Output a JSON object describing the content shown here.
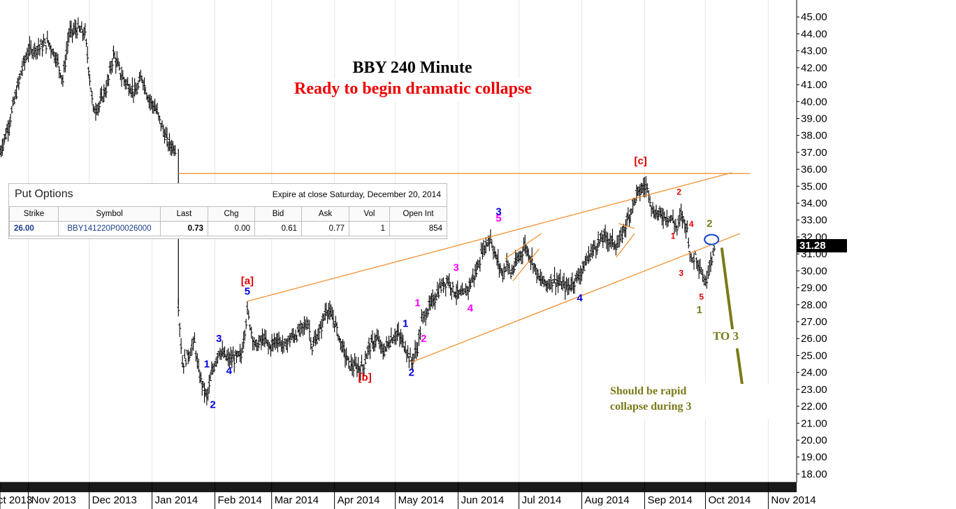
{
  "title": "BBY 240 Minute",
  "subtitle": "Ready to begin dramatic collapse",
  "note": [
    "Should be rapid",
    "collapse during 3"
  ],
  "target_label": "TO 3",
  "last_price_tag": "31.28",
  "options": {
    "panel_title": "Put Options",
    "expire_text": "Expire at close Saturday, December 20, 2014",
    "columns": [
      "Strike",
      "Symbol",
      "Last",
      "Chg",
      "Bid",
      "Ask",
      "Vol",
      "Open Int"
    ],
    "row": [
      "26.00",
      "BBY141220P00026000",
      "0.73",
      "0.00",
      "0.61",
      "0.77",
      "1",
      "854"
    ]
  },
  "colors": {
    "bars": "#000000",
    "channel": "#f08a24",
    "red": "#e00000",
    "blue": "#0000e0",
    "magenta": "#ff00ff",
    "olive": "#7a7a18",
    "circle": "#1144cc"
  },
  "chart_data": {
    "type": "ohlc",
    "title": "BBY 240 Minute",
    "y_axis": {
      "side": "right",
      "ylim": [
        17.5,
        46.0
      ],
      "ticks": [
        "18.00",
        "19.00",
        "20.00",
        "21.00",
        "22.00",
        "23.00",
        "24.00",
        "25.00",
        "26.00",
        "27.00",
        "28.00",
        "29.00",
        "30.00",
        "31.00",
        "32.00",
        "33.00",
        "34.00",
        "35.00",
        "36.00",
        "37.00",
        "38.00",
        "39.00",
        "40.00",
        "41.00",
        "42.00",
        "43.00",
        "44.00",
        "45.00"
      ]
    },
    "x_axis": {
      "ticks": [
        "ct 2013",
        "Nov 2013",
        "Dec 2013",
        "Jan 2014",
        "Feb 2014",
        "Mar 2014",
        "Apr 2014",
        "May 2014",
        "Jun 2014",
        "Jul 2014",
        "Aug 2014",
        "Sep 2014",
        "Oct 2014",
        "Nov 2014"
      ],
      "range": [
        "2013-10-18",
        "2014-11-15"
      ]
    },
    "price_path": [
      [
        "2013-10-18",
        37.0
      ],
      [
        "2013-10-22",
        38.5
      ],
      [
        "2013-10-25",
        40.0
      ],
      [
        "2013-10-29",
        42.0
      ],
      [
        "2013-11-01",
        43.0
      ],
      [
        "2013-11-06",
        43.2
      ],
      [
        "2013-11-11",
        43.5
      ],
      [
        "2013-11-15",
        42.5
      ],
      [
        "2013-11-18",
        41.3
      ],
      [
        "2013-11-21",
        44.0
      ],
      [
        "2013-11-25",
        44.3
      ],
      [
        "2013-11-29",
        44.0
      ],
      [
        "2013-12-03",
        39.5
      ],
      [
        "2013-12-06",
        39.8
      ],
      [
        "2013-12-10",
        41.0
      ],
      [
        "2013-12-13",
        42.8
      ],
      [
        "2013-12-17",
        41.5
      ],
      [
        "2013-12-20",
        41.0
      ],
      [
        "2013-12-24",
        40.5
      ],
      [
        "2013-12-27",
        41.5
      ],
      [
        "2013-12-30",
        40.3
      ],
      [
        "2014-01-03",
        39.5
      ],
      [
        "2014-01-06",
        38.5
      ],
      [
        "2014-01-09",
        37.5
      ],
      [
        "2014-01-13",
        37.2
      ],
      [
        "2014-01-14",
        28.0
      ],
      [
        "2014-01-16",
        24.5
      ],
      [
        "2014-01-20",
        25.3
      ],
      [
        "2014-01-22",
        25.8
      ],
      [
        "2014-01-24",
        24.0
      ],
      [
        "2014-01-28",
        22.5
      ],
      [
        "2014-01-31",
        24.2
      ],
      [
        "2014-02-03",
        25.3
      ],
      [
        "2014-02-07",
        24.8
      ],
      [
        "2014-02-10",
        24.8
      ],
      [
        "2014-02-14",
        25.0
      ],
      [
        "2014-02-17",
        27.6
      ],
      [
        "2014-02-19",
        26.5
      ],
      [
        "2014-02-21",
        25.5
      ],
      [
        "2014-02-25",
        26.0
      ],
      [
        "2014-02-28",
        25.5
      ],
      [
        "2014-03-04",
        26.0
      ],
      [
        "2014-03-07",
        25.5
      ],
      [
        "2014-03-10",
        26.0
      ],
      [
        "2014-03-14",
        26.3
      ],
      [
        "2014-03-19",
        27.0
      ],
      [
        "2014-03-21",
        25.5
      ],
      [
        "2014-03-25",
        26.5
      ],
      [
        "2014-03-28",
        27.8
      ],
      [
        "2014-04-01",
        27.0
      ],
      [
        "2014-04-04",
        25.8
      ],
      [
        "2014-04-08",
        24.5
      ],
      [
        "2014-04-11",
        24.3
      ],
      [
        "2014-04-15",
        24.3
      ],
      [
        "2014-04-18",
        25.5
      ],
      [
        "2014-04-22",
        26.0
      ],
      [
        "2014-04-25",
        25.2
      ],
      [
        "2014-04-29",
        26.0
      ],
      [
        "2014-05-02",
        26.3
      ],
      [
        "2014-05-06",
        25.5
      ],
      [
        "2014-05-09",
        24.6
      ],
      [
        "2014-05-12",
        25.5
      ],
      [
        "2014-05-14",
        27.0
      ],
      [
        "2014-05-16",
        27.5
      ],
      [
        "2014-05-20",
        28.3
      ],
      [
        "2014-05-23",
        29.0
      ],
      [
        "2014-05-27",
        29.5
      ],
      [
        "2014-05-30",
        28.8
      ],
      [
        "2014-06-03",
        28.5
      ],
      [
        "2014-06-06",
        29.0
      ],
      [
        "2014-06-10",
        30.0
      ],
      [
        "2014-06-13",
        31.2
      ],
      [
        "2014-06-17",
        32.0
      ],
      [
        "2014-06-19",
        31.0
      ],
      [
        "2014-06-23",
        29.8
      ],
      [
        "2014-06-25",
        30.5
      ],
      [
        "2014-06-27",
        29.8
      ],
      [
        "2014-07-01",
        30.8
      ],
      [
        "2014-07-04",
        31.5
      ],
      [
        "2014-07-08",
        30.5
      ],
      [
        "2014-07-11",
        29.5
      ],
      [
        "2014-07-15",
        29.2
      ],
      [
        "2014-07-18",
        29.5
      ],
      [
        "2014-07-22",
        29.2
      ],
      [
        "2014-07-25",
        29.0
      ],
      [
        "2014-07-29",
        29.5
      ],
      [
        "2014-08-01",
        30.0
      ],
      [
        "2014-08-05",
        31.0
      ],
      [
        "2014-08-08",
        31.5
      ],
      [
        "2014-08-12",
        32.0
      ],
      [
        "2014-08-15",
        31.8
      ],
      [
        "2014-08-19",
        31.5
      ],
      [
        "2014-08-21",
        32.2
      ],
      [
        "2014-08-25",
        33.5
      ],
      [
        "2014-08-28",
        34.5
      ],
      [
        "2014-09-01",
        35.0
      ],
      [
        "2014-09-03",
        34.8
      ],
      [
        "2014-09-05",
        33.5
      ],
      [
        "2014-09-09",
        33.3
      ],
      [
        "2014-09-12",
        33.2
      ],
      [
        "2014-09-15",
        33.0
      ],
      [
        "2014-09-17",
        32.5
      ],
      [
        "2014-09-19",
        33.3
      ],
      [
        "2014-09-22",
        32.5
      ],
      [
        "2014-09-24",
        30.5
      ],
      [
        "2014-09-26",
        31.0
      ],
      [
        "2014-09-29",
        30.0
      ],
      [
        "2014-10-01",
        29.2
      ],
      [
        "2014-10-03",
        30.5
      ],
      [
        "2014-10-06",
        31.3
      ]
    ],
    "annotations": [
      {
        "text": "[a]",
        "color": "red",
        "date": "2014-02-17",
        "price": 29.2
      },
      {
        "text": "[b]",
        "color": "red",
        "date": "2014-04-16",
        "price": 23.5
      },
      {
        "text": "[c]",
        "color": "red",
        "date": "2014-08-30",
        "price": 36.3
      },
      {
        "text": "5",
        "color": "blue",
        "date": "2014-02-17",
        "price": 28.6
      },
      {
        "text": "1",
        "color": "blue",
        "date": "2014-01-28",
        "price": 24.3
      },
      {
        "text": "2",
        "color": "blue",
        "date": "2014-01-31",
        "price": 21.9
      },
      {
        "text": "3",
        "color": "blue",
        "date": "2014-02-03",
        "price": 25.8
      },
      {
        "text": "4",
        "color": "blue",
        "date": "2014-02-08",
        "price": 23.9
      },
      {
        "text": "1",
        "color": "blue",
        "date": "2014-05-06",
        "price": 26.7
      },
      {
        "text": "2",
        "color": "blue",
        "date": "2014-05-09",
        "price": 23.8
      },
      {
        "text": "3",
        "color": "blue",
        "date": "2014-06-21",
        "price": 33.3
      },
      {
        "text": "4",
        "color": "blue",
        "date": "2014-07-31",
        "price": 28.2
      },
      {
        "text": "1",
        "color": "magenta",
        "date": "2014-05-12",
        "price": 27.9
      },
      {
        "text": "2",
        "color": "magenta",
        "date": "2014-05-15",
        "price": 25.8
      },
      {
        "text": "3",
        "color": "magenta",
        "date": "2014-05-31",
        "price": 30.0
      },
      {
        "text": "4",
        "color": "magenta",
        "date": "2014-06-07",
        "price": 27.6
      },
      {
        "text": "5",
        "color": "magenta",
        "date": "2014-06-21",
        "price": 32.9
      },
      {
        "text": "1",
        "color": "red",
        "date": "2014-09-15",
        "price": 31.9
      },
      {
        "text": "2",
        "color": "red",
        "date": "2014-09-18",
        "price": 34.5
      },
      {
        "text": "3",
        "color": "red",
        "date": "2014-09-19",
        "price": 29.7
      },
      {
        "text": "4",
        "color": "red",
        "date": "2014-09-24",
        "price": 32.6
      },
      {
        "text": "5",
        "color": "red",
        "date": "2014-09-29",
        "price": 28.3
      },
      {
        "text": "2",
        "color": "olive",
        "date": "2014-10-03",
        "price": 32.6
      },
      {
        "text": "1",
        "color": "olive",
        "date": "2014-09-28",
        "price": 27.5
      }
    ]
  }
}
